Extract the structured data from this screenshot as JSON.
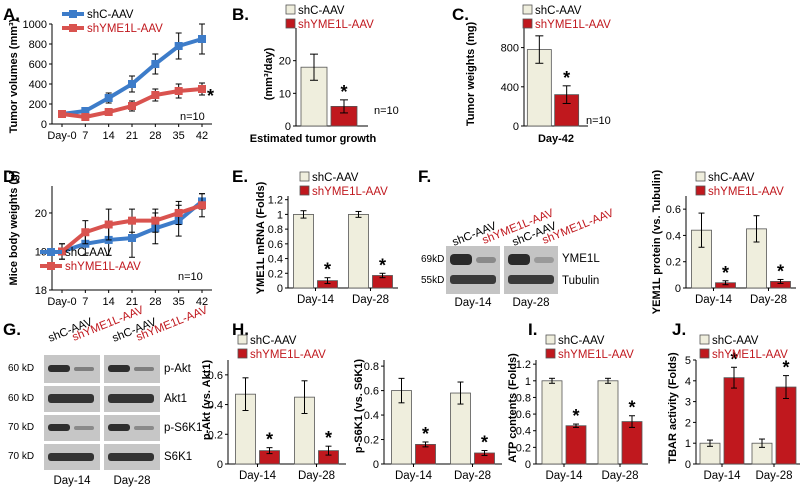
{
  "colors": {
    "ctrl_line": "#3d7cc9",
    "kd_line": "#d9534f",
    "ctrl_bar": "#efeedd",
    "kd_bar": "#c0181e",
    "kd_text": "#c0181e"
  },
  "panels": {
    "A": {
      "letter": "A.",
      "legend": [
        "shC-AAV",
        "shYME1L-AAV"
      ],
      "ylabel": "Tumor volumes (mm³)",
      "n": "n=10",
      "star": "*"
    },
    "B": {
      "letter": "B.",
      "legend": [
        "shC-AAV",
        "shYME1L-AAV"
      ],
      "ylabel": "(mm³/day)",
      "xlabel": "Estimated tumor growth",
      "n": "n=10"
    },
    "C": {
      "letter": "C.",
      "legend": [
        "shC-AAV",
        "shYME1L-AAV"
      ],
      "ylabel": "Tumor weights (mg)",
      "xlabel": "Day-42",
      "n": "n=10"
    },
    "D": {
      "letter": "D.",
      "legend": [
        "shC-AAV",
        "shYME1L-AAV"
      ],
      "ylabel": "Mice body weights (g)",
      "n": "n=10"
    },
    "E": {
      "letter": "E.",
      "legend": [
        "shC-AAV",
        "shYME1L-AAV"
      ],
      "ylabel": "YME1L mRNA (Folds)"
    },
    "F": {
      "letter": "F.",
      "legend": [
        "shC-AAV",
        "shYME1L-AAV"
      ],
      "lanes": [
        "shC-AAV",
        "shYME1L-AAV",
        "shC-AAV",
        "shYME1L-AAV"
      ],
      "markers": [
        "69kD",
        "55kD"
      ],
      "bands": [
        "YME1L",
        "Tubulin"
      ],
      "days": [
        "Day-14",
        "Day-28"
      ],
      "ylabel": "YEM1L protein (vs. Tubulin)"
    },
    "G": {
      "letter": "G.",
      "lanes": [
        "shC-AAV",
        "shYME1L-AAV",
        "shC-AAV",
        "shYME1L-AAV"
      ],
      "markers": [
        "60 kD",
        "60 kD",
        "70 kD",
        "70 kD"
      ],
      "bands": [
        "p-Akt",
        "Akt1",
        "p-S6K1",
        "S6K1"
      ],
      "days": [
        "Day-14",
        "Day-28"
      ]
    },
    "H": {
      "letter": "H.",
      "legend": [
        "shC-AAV",
        "shYME1L-AAV"
      ],
      "ylabel1": "p-Akt (vs. Akt1)",
      "ylabel2": "p-S6K1 (vs. S6K1)"
    },
    "I": {
      "letter": "I.",
      "legend": [
        "shC-AAV",
        "shYME1L-AAV"
      ],
      "ylabel": "ATP contents (Folds)"
    },
    "J": {
      "letter": "J.",
      "legend": [
        "shC-AAV",
        "shYME1L-AAV"
      ],
      "ylabel": "TBAR activity (Folds)"
    }
  },
  "chart_data": [
    {
      "id": "A",
      "type": "line",
      "x": [
        "Day-0",
        "7",
        "14",
        "21",
        "28",
        "35",
        "42"
      ],
      "ylim": [
        0,
        1000
      ],
      "yticks": [
        0,
        200,
        400,
        600,
        800,
        1000
      ],
      "series": [
        {
          "name": "shC-AAV",
          "values": [
            100,
            130,
            260,
            400,
            600,
            780,
            850
          ],
          "err": [
            20,
            25,
            50,
            80,
            100,
            130,
            150
          ]
        },
        {
          "name": "shYME1L-AAV",
          "values": [
            100,
            70,
            120,
            180,
            290,
            330,
            350
          ],
          "err": [
            20,
            15,
            30,
            50,
            60,
            70,
            60
          ]
        }
      ]
    },
    {
      "id": "B",
      "type": "bar",
      "categories": [
        "shC-AAV",
        "shYME1L-AAV"
      ],
      "values": [
        18,
        6
      ],
      "err": [
        4,
        2
      ],
      "ylim": [
        0,
        30
      ],
      "yticks": [
        0,
        10,
        20
      ],
      "sig": [
        false,
        true
      ]
    },
    {
      "id": "C",
      "type": "bar",
      "categories": [
        "shC-AAV",
        "shYME1L-AAV"
      ],
      "values": [
        780,
        320
      ],
      "err": [
        140,
        90
      ],
      "ylim": [
        0,
        1000
      ],
      "yticks": [
        0,
        400,
        800
      ],
      "sig": [
        false,
        true
      ]
    },
    {
      "id": "D",
      "type": "line",
      "x": [
        "Day-0",
        "7",
        "14",
        "21",
        "28",
        "35",
        "42"
      ],
      "ylim": [
        18,
        20.7
      ],
      "yticks": [
        18,
        19,
        20
      ],
      "series": [
        {
          "name": "shC-AAV",
          "values": [
            19.0,
            19.2,
            19.3,
            19.35,
            19.6,
            19.8,
            20.3
          ],
          "err": [
            0.2,
            0.3,
            0.4,
            0.5,
            0.4,
            0.4,
            0.2
          ]
        },
        {
          "name": "shYME1L-AAV",
          "values": [
            19.0,
            19.5,
            19.7,
            19.8,
            19.8,
            20.0,
            20.2
          ],
          "err": [
            0.2,
            0.3,
            0.4,
            0.3,
            0.3,
            0.3,
            0.3
          ]
        }
      ]
    },
    {
      "id": "E",
      "type": "bar",
      "categories": [
        "Day-14",
        "Day-28"
      ],
      "series": [
        {
          "name": "shC-AAV",
          "values": [
            1.0,
            1.0
          ],
          "err": [
            0.05,
            0.04
          ]
        },
        {
          "name": "shYME1L-AAV",
          "values": [
            0.1,
            0.17
          ],
          "err": [
            0.04,
            0.03
          ]
        }
      ],
      "ylim": [
        0,
        1.25
      ],
      "yticks": [
        0,
        0.2,
        0.4,
        0.6,
        0.8,
        1,
        1.2
      ],
      "sig": [
        true,
        true
      ]
    },
    {
      "id": "F",
      "type": "bar",
      "categories": [
        "Day-14",
        "Day-28"
      ],
      "series": [
        {
          "name": "shC-AAV",
          "values": [
            0.44,
            0.45
          ],
          "err": [
            0.13,
            0.1
          ]
        },
        {
          "name": "shYME1L-AAV",
          "values": [
            0.04,
            0.05
          ],
          "err": [
            0.015,
            0.015
          ]
        }
      ],
      "ylim": [
        0,
        0.7
      ],
      "yticks": [
        0,
        0.2,
        0.4,
        0.6
      ],
      "sig": [
        true,
        true
      ]
    },
    {
      "id": "H1",
      "type": "bar",
      "categories": [
        "Day-14",
        "Day-28"
      ],
      "series": [
        {
          "name": "shC-AAV",
          "values": [
            0.47,
            0.45
          ],
          "err": [
            0.11,
            0.11
          ]
        },
        {
          "name": "shYME1L-AAV",
          "values": [
            0.09,
            0.09
          ],
          "err": [
            0.02,
            0.03
          ]
        }
      ],
      "ylim": [
        0,
        0.7
      ],
      "yticks": [
        0,
        0.2,
        0.4,
        0.6
      ],
      "sig": [
        true,
        true
      ]
    },
    {
      "id": "H2",
      "type": "bar",
      "categories": [
        "Day-14",
        "Day-28"
      ],
      "series": [
        {
          "name": "shC-AAV",
          "values": [
            0.6,
            0.58
          ],
          "err": [
            0.1,
            0.09
          ]
        },
        {
          "name": "shYME1L-AAV",
          "values": [
            0.16,
            0.09
          ],
          "err": [
            0.02,
            0.02
          ]
        }
      ],
      "ylim": [
        0,
        0.85
      ],
      "yticks": [
        0,
        0.2,
        0.4,
        0.6,
        0.8
      ],
      "sig": [
        true,
        true
      ]
    },
    {
      "id": "I",
      "type": "bar",
      "categories": [
        "Day-14",
        "Day-28"
      ],
      "series": [
        {
          "name": "shC-AAV",
          "values": [
            1.0,
            1.0
          ],
          "err": [
            0.03,
            0.03
          ]
        },
        {
          "name": "shYME1L-AAV",
          "values": [
            0.46,
            0.51
          ],
          "err": [
            0.02,
            0.07
          ]
        }
      ],
      "ylim": [
        0,
        1.25
      ],
      "yticks": [
        0,
        0.2,
        0.4,
        0.6,
        0.8,
        1,
        1.2
      ],
      "sig": [
        true,
        true
      ]
    },
    {
      "id": "J",
      "type": "bar",
      "categories": [
        "Day-14",
        "Day-28"
      ],
      "series": [
        {
          "name": "shC-AAV",
          "values": [
            1.0,
            1.0
          ],
          "err": [
            0.15,
            0.2
          ]
        },
        {
          "name": "shYME1L-AAV",
          "values": [
            4.15,
            3.7
          ],
          "err": [
            0.5,
            0.55
          ]
        }
      ],
      "ylim": [
        0,
        5
      ],
      "yticks": [
        0,
        1,
        2,
        3,
        4,
        5
      ],
      "sig": [
        true,
        true
      ]
    }
  ]
}
